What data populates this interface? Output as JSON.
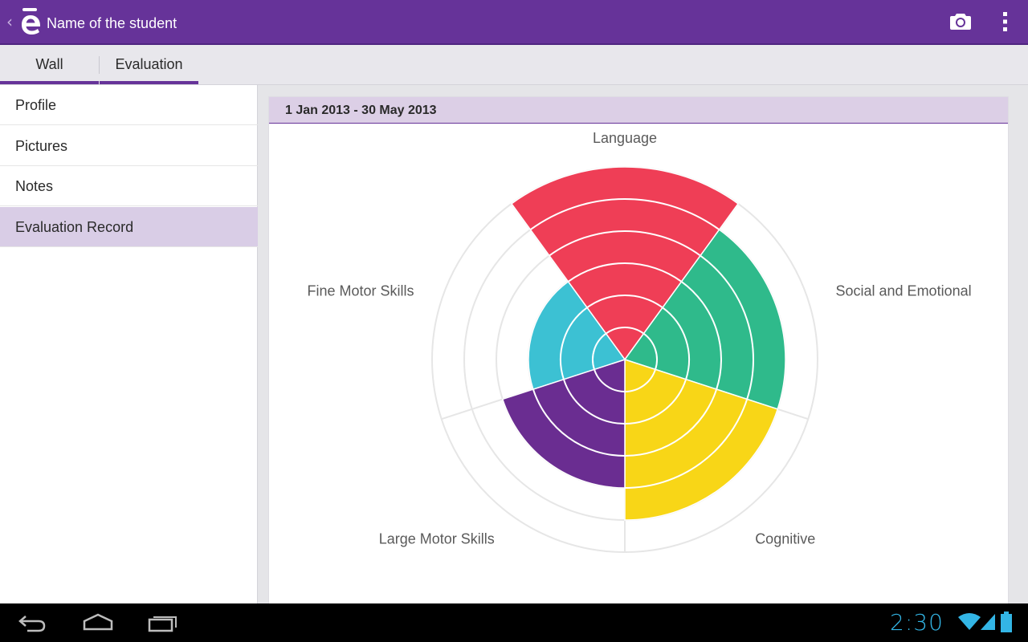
{
  "app": {
    "title": "Name of the student"
  },
  "tabs": [
    {
      "label": "Wall",
      "selected": false
    },
    {
      "label": "Evaluation",
      "selected": true
    }
  ],
  "sidebar": {
    "items": [
      {
        "label": "Profile",
        "active": false
      },
      {
        "label": "Pictures",
        "active": false
      },
      {
        "label": "Notes",
        "active": false
      },
      {
        "label": "Evaluation Record",
        "active": true
      }
    ]
  },
  "evaluation": {
    "date_range": "1 Jan 2013 - 30 May 2013"
  },
  "chart_data": {
    "type": "polar-area",
    "max": 6,
    "categories": [
      {
        "label": "Language",
        "value": 6,
        "color": "#ef3e56"
      },
      {
        "label": "Social and Emotional",
        "value": 5,
        "color": "#2fba8b"
      },
      {
        "label": "Cognitive",
        "value": 5,
        "color": "#f8d617"
      },
      {
        "label": "Large Motor Skills",
        "value": 4,
        "color": "#6a2d91"
      },
      {
        "label": "Fine Motor Skills",
        "value": 3,
        "color": "#3cc1d3"
      }
    ]
  },
  "status": {
    "time": "2:30"
  },
  "icons": {
    "back": "chevron-left-icon",
    "logo": "app-logo-icon",
    "camera": "camera-icon",
    "overflow": "overflow-menu-icon",
    "nav_back": "back-icon",
    "nav_home": "home-icon",
    "nav_recents": "recents-icon",
    "wifi": "wifi-icon",
    "signal": "signal-icon",
    "battery": "battery-icon"
  },
  "colors": {
    "accent": "#663399",
    "selected_bg": "#d9cde6",
    "clock": "#33b5e5"
  }
}
